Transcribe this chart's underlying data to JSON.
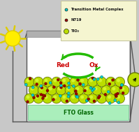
{
  "bg_color": "#c8c8c8",
  "legend_box_color": "#f5f5d0",
  "legend_box_edge": "#c8c8a0",
  "legend_items": [
    {
      "label": "Transition Metal Complex",
      "color": "#00cccc",
      "size": 4
    },
    {
      "label": "N719",
      "color": "#990000",
      "size": 4
    },
    {
      "label": "TiO₂",
      "color": "#bbdd00",
      "size": 7
    }
  ],
  "sun_color": "#ffee00",
  "sun_ray_color": "#ddcc00",
  "fto_color": "#aaeebb",
  "fto_label": "FTO Glass",
  "fto_text_color": "#006600",
  "electrode_color": "#b0b0b0",
  "electrode_edge": "#888888",
  "wire_color": "#555555",
  "cell_bg": "#ffffff",
  "arrow_color": "#22bb00",
  "red_label_color": "#cc0000",
  "ox_label_color": "#cc0000",
  "tio2_sphere_color": "#bbdd00",
  "tio2_sphere_edge": "#556600",
  "dye_n719_color": "#990000",
  "dye_tmc_color": "#00cccc",
  "bulb_color": "#bbdd00",
  "bulb_edge": "#667700"
}
